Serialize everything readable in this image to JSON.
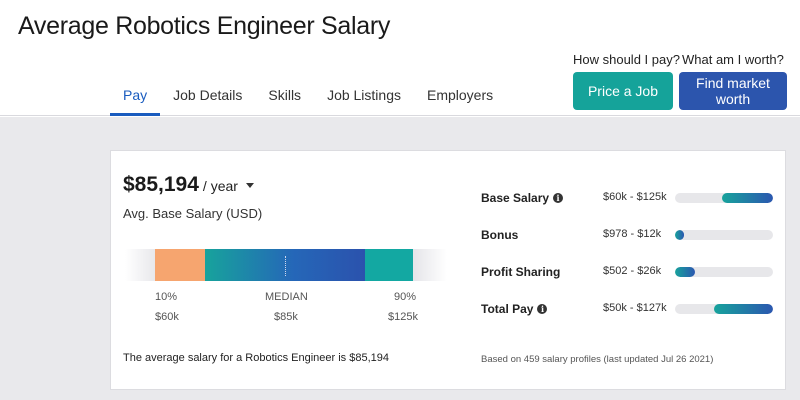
{
  "header": {
    "title": "Average Robotics Engineer Salary",
    "tabs": [
      {
        "label": "Pay",
        "active": true
      },
      {
        "label": "Job Details"
      },
      {
        "label": "Skills"
      },
      {
        "label": "Job Listings"
      },
      {
        "label": "Employers"
      }
    ],
    "cta_price_label": "How should I pay?",
    "cta_price_button": "Price a Job",
    "cta_worth_label": "What am I worth?",
    "cta_worth_button": "Find market worth"
  },
  "summary": {
    "amount": "$85,194",
    "period": "/ year",
    "subtitle": "Avg. Base Salary (USD)",
    "percentiles": {
      "p10_label": "10%",
      "median_label": "MEDIAN",
      "p90_label": "90%",
      "p10_value": "$60k",
      "median_value": "$85k",
      "p90_value": "$125k"
    },
    "footer": "The average salary for a Robotics Engineer is $85,194"
  },
  "breakdown": {
    "rows": [
      {
        "label": "Base Salary",
        "info": true,
        "range": "$60k - $125k",
        "fill_start": 0.48,
        "fill_end": 1.0
      },
      {
        "label": "Bonus",
        "info": false,
        "range": "$978 - $12k",
        "fill_start": 0.0,
        "fill_end": 0.09
      },
      {
        "label": "Profit Sharing",
        "info": false,
        "range": "$502 - $26k",
        "fill_start": 0.0,
        "fill_end": 0.2
      },
      {
        "label": "Total Pay",
        "info": true,
        "range": "$50k - $127k",
        "fill_start": 0.4,
        "fill_end": 1.0
      }
    ],
    "footer": "Based on 459 salary profiles (last updated Jul 26 2021)"
  },
  "colors": {
    "accent_blue": "#1a5cbf",
    "teal_button": "#15a39a",
    "navy_button": "#2c55ad",
    "low_segment": "#f6a56f",
    "high_segment": "#13a8a2"
  },
  "icons": {
    "dropdown": "chevron-down-icon",
    "info": "info-icon"
  }
}
